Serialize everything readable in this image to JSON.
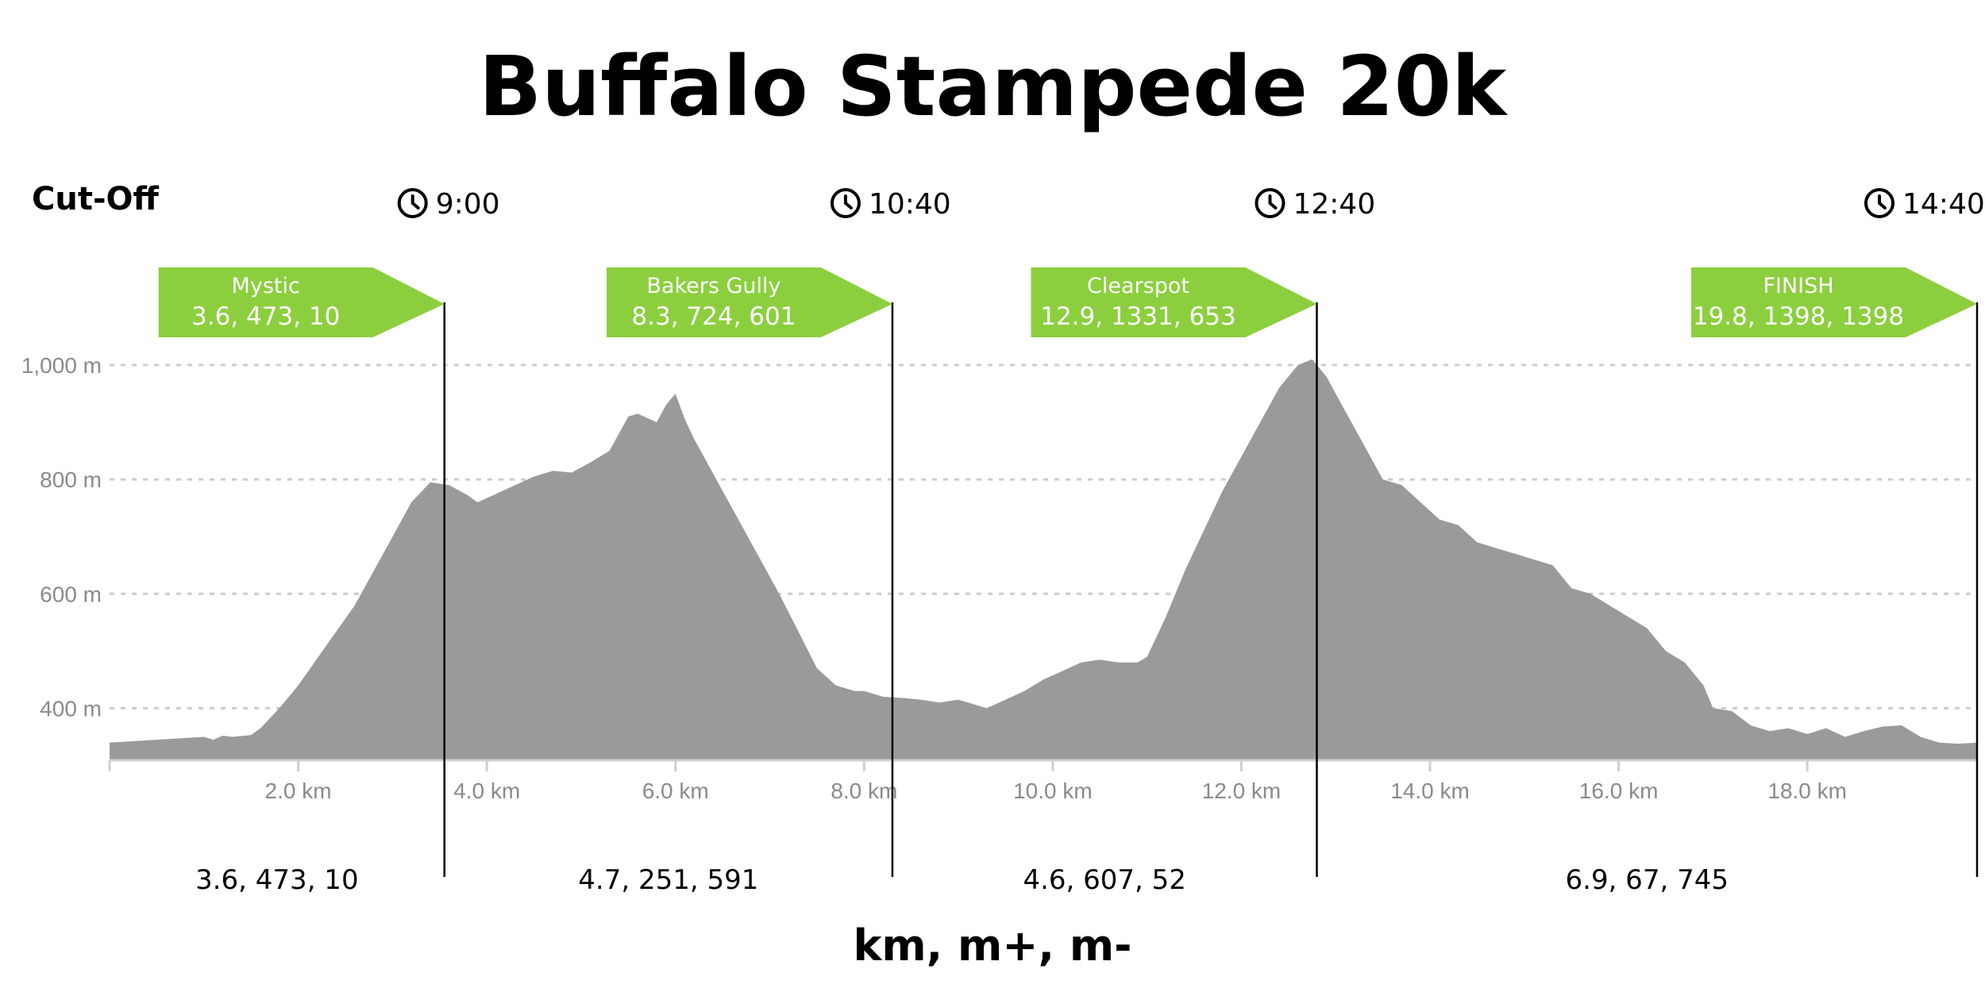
{
  "title": "Buffalo Stampede 20k",
  "cutoff_label": "Cut-Off",
  "footer_label": "km, m+, m-",
  "colors": {
    "profile_fill": "#9a9a9a",
    "flag": "#8ccf3e",
    "grid": "#cccccc",
    "axis_text": "#8a8a8a"
  },
  "icons": {
    "cutoff": "clock-icon"
  },
  "chart_data": {
    "type": "area",
    "xlabel": "",
    "ylabel": "",
    "xlim": [
      0,
      19.8
    ],
    "ylim": [
      330,
      1060
    ],
    "x_ticks": [
      2.0,
      4.0,
      6.0,
      8.0,
      10.0,
      12.0,
      14.0,
      16.0,
      18.0
    ],
    "x_tick_labels": [
      "2.0 km",
      "4.0 km",
      "6.0 km",
      "8.0 km",
      "10.0 km",
      "12.0 km",
      "14.0 km",
      "16.0 km",
      "18.0 km"
    ],
    "y_ticks": [
      400,
      600,
      800,
      1000
    ],
    "y_tick_labels": [
      "400 m",
      "600 m",
      "800 m",
      "1,000 m"
    ],
    "grid": true,
    "profile": {
      "x": [
        0,
        0.5,
        1.0,
        1.1,
        1.2,
        1.3,
        1.5,
        1.6,
        1.8,
        2.0,
        2.3,
        2.6,
        2.8,
        3.0,
        3.2,
        3.4,
        3.6,
        3.8,
        3.9,
        4.1,
        4.3,
        4.5,
        4.7,
        4.9,
        5.1,
        5.3,
        5.5,
        5.6,
        5.8,
        5.9,
        6.0,
        6.1,
        6.2,
        6.3,
        6.5,
        6.7,
        6.9,
        7.1,
        7.3,
        7.5,
        7.7,
        7.9,
        8.0,
        8.1,
        8.2,
        8.4,
        8.6,
        8.8,
        9.0,
        9.2,
        9.3,
        9.5,
        9.7,
        9.9,
        10.1,
        10.3,
        10.5,
        10.7,
        10.9,
        11.0,
        11.2,
        11.4,
        11.6,
        11.8,
        12.0,
        12.2,
        12.4,
        12.6,
        12.75,
        12.9,
        13.1,
        13.3,
        13.5,
        13.7,
        13.9,
        14.1,
        14.3,
        14.5,
        14.7,
        14.9,
        15.1,
        15.3,
        15.5,
        15.7,
        15.9,
        16.1,
        16.3,
        16.5,
        16.7,
        16.9,
        17.0,
        17.2,
        17.4,
        17.6,
        17.8,
        18.0,
        18.2,
        18.4,
        18.6,
        18.8,
        19.0,
        19.2,
        19.4,
        19.6,
        19.8
      ],
      "y": [
        340,
        345,
        350,
        345,
        352,
        350,
        353,
        365,
        400,
        440,
        510,
        580,
        640,
        700,
        760,
        795,
        790,
        772,
        760,
        775,
        790,
        805,
        815,
        812,
        830,
        850,
        910,
        915,
        900,
        930,
        950,
        905,
        870,
        840,
        780,
        720,
        660,
        600,
        535,
        470,
        440,
        430,
        430,
        425,
        420,
        418,
        415,
        410,
        415,
        405,
        400,
        415,
        430,
        450,
        465,
        480,
        485,
        480,
        480,
        490,
        560,
        640,
        710,
        780,
        840,
        900,
        960,
        1000,
        1010,
        980,
        920,
        860,
        800,
        790,
        760,
        730,
        720,
        690,
        680,
        670,
        660,
        650,
        610,
        600,
        580,
        560,
        540,
        500,
        480,
        440,
        400,
        395,
        370,
        360,
        365,
        355,
        365,
        350,
        360,
        368,
        370,
        350,
        340,
        338,
        340
      ]
    },
    "splits": [
      {
        "x": 3.55,
        "name": "Mystic",
        "stats": "3.6, 473, 10",
        "segment": "3.6, 473, 10",
        "cutoff": "9:00"
      },
      {
        "x": 8.3,
        "name": "Bakers Gully",
        "stats": "8.3, 724, 601",
        "segment": "4.7, 251, 591",
        "cutoff": "10:40"
      },
      {
        "x": 12.8,
        "name": "Clearspot",
        "stats": "12.9, 1331, 653",
        "segment": "4.6, 607, 52",
        "cutoff": "12:40"
      },
      {
        "x": 19.8,
        "name": "FINISH",
        "stats": "19.8, 1398, 1398",
        "segment": "6.9, 67, 745",
        "cutoff": "14:40"
      }
    ]
  }
}
